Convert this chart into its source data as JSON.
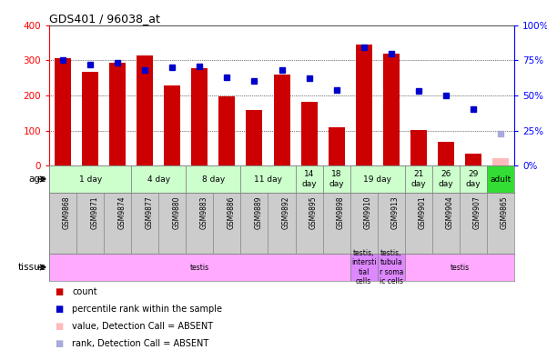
{
  "title": "GDS401 / 96038_at",
  "samples": [
    "GSM9868",
    "GSM9871",
    "GSM9874",
    "GSM9877",
    "GSM9880",
    "GSM9883",
    "GSM9886",
    "GSM9889",
    "GSM9892",
    "GSM9895",
    "GSM9898",
    "GSM9910",
    "GSM9913",
    "GSM9901",
    "GSM9904",
    "GSM9907",
    "GSM9865"
  ],
  "counts": [
    305,
    268,
    292,
    315,
    228,
    278,
    198,
    158,
    260,
    183,
    109,
    346,
    320,
    102,
    67,
    35,
    20
  ],
  "ranks": [
    75,
    72,
    73,
    68,
    70,
    71,
    63,
    60,
    68,
    62,
    54,
    84,
    80,
    53,
    50,
    40,
    23
  ],
  "absent_count_idx": [
    16
  ],
  "absent_rank_idx": [
    16
  ],
  "age_groups": [
    {
      "label": "1 day",
      "start": 0,
      "end": 3,
      "color": "#ccffcc"
    },
    {
      "label": "4 day",
      "start": 3,
      "end": 5,
      "color": "#ccffcc"
    },
    {
      "label": "8 day",
      "start": 5,
      "end": 7,
      "color": "#ccffcc"
    },
    {
      "label": "11 day",
      "start": 7,
      "end": 9,
      "color": "#ccffcc"
    },
    {
      "label": "14\nday",
      "start": 9,
      "end": 10,
      "color": "#ccffcc"
    },
    {
      "label": "18\nday",
      "start": 10,
      "end": 11,
      "color": "#ccffcc"
    },
    {
      "label": "19 day",
      "start": 11,
      "end": 13,
      "color": "#ccffcc"
    },
    {
      "label": "21\nday",
      "start": 13,
      "end": 14,
      "color": "#ccffcc"
    },
    {
      "label": "26\nday",
      "start": 14,
      "end": 15,
      "color": "#ccffcc"
    },
    {
      "label": "29\nday",
      "start": 15,
      "end": 16,
      "color": "#ccffcc"
    },
    {
      "label": "adult",
      "start": 16,
      "end": 17,
      "color": "#33dd33"
    }
  ],
  "tissue_groups": [
    {
      "label": "testis",
      "start": 0,
      "end": 11,
      "color": "#ffaaff"
    },
    {
      "label": "testis,\nintersti\ntial\ncells",
      "start": 11,
      "end": 12,
      "color": "#dd88ff"
    },
    {
      "label": "testis,\ntubula\nr soma\nic cells",
      "start": 12,
      "end": 13,
      "color": "#dd88ff"
    },
    {
      "label": "testis",
      "start": 13,
      "end": 17,
      "color": "#ffaaff"
    }
  ],
  "bar_color": "#cc0000",
  "dot_color": "#0000cc",
  "absent_bar_color": "#ffbbbb",
  "absent_dot_color": "#aaaadd",
  "ylim_left": [
    0,
    400
  ],
  "ylim_right": [
    0,
    100
  ],
  "yticks_left": [
    0,
    100,
    200,
    300,
    400
  ],
  "yticks_right": [
    0,
    25,
    50,
    75,
    100
  ],
  "ytick_labels_right": [
    "0%",
    "25%",
    "50%",
    "75%",
    "100%"
  ],
  "background_color": "#ffffff",
  "xticklabel_bg": "#cccccc"
}
